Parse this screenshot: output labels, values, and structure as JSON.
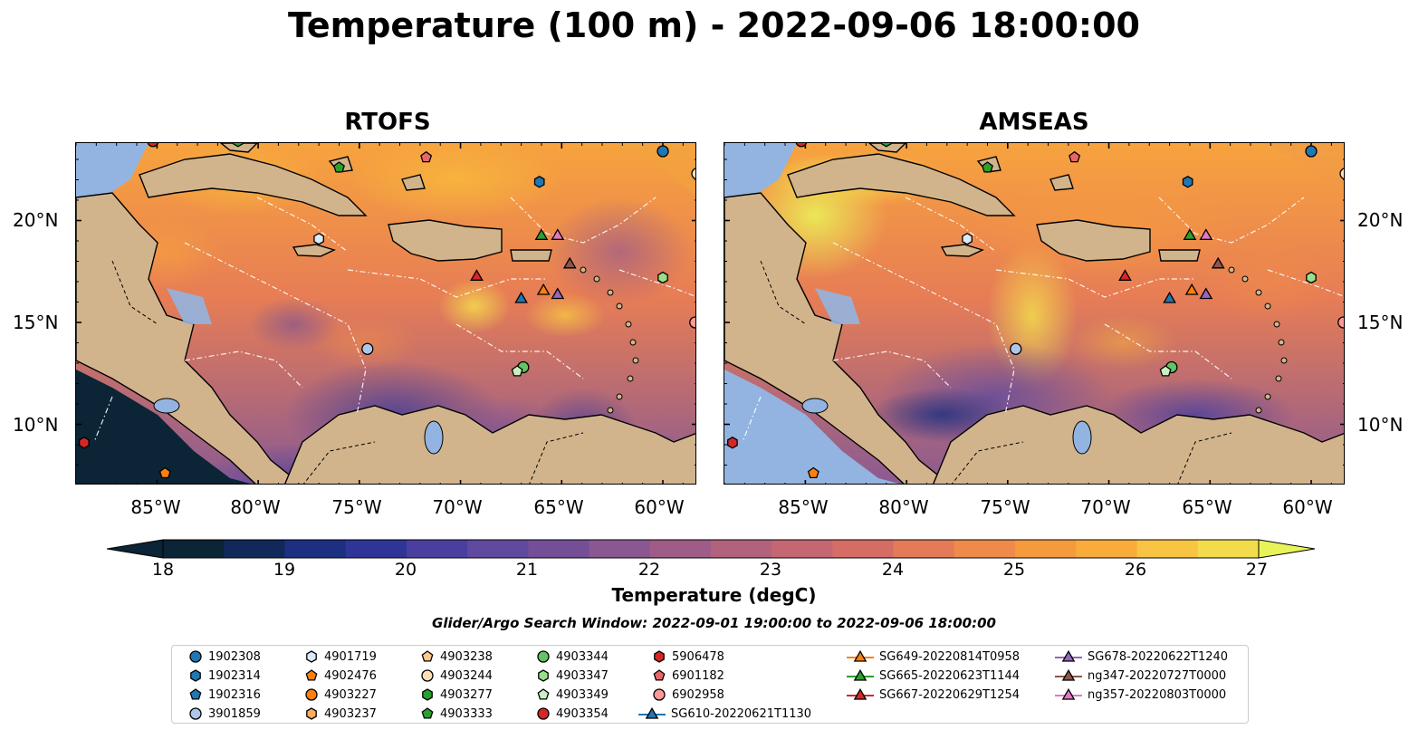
{
  "title": "Temperature (100 m) - 2022-09-06 18:00:00",
  "panels": [
    {
      "title": "RTOFS",
      "lat_labels": [
        "20°N",
        "15°N",
        "10°N"
      ],
      "lat_side": "left"
    },
    {
      "title": "AMSEAS",
      "lat_labels": [
        "20°N",
        "15°N",
        "10°N"
      ],
      "lat_side": "right"
    }
  ],
  "lon_labels": [
    "85°W",
    "80°W",
    "75°W",
    "70°W",
    "65°W",
    "60°W"
  ],
  "colorbar": {
    "label": "Temperature (degC)",
    "ticks": [
      "18",
      "19",
      "20",
      "21",
      "22",
      "23",
      "24",
      "25",
      "26",
      "27"
    ],
    "min": 18,
    "max": 27,
    "extend": "both",
    "colors": [
      "#0b2436",
      "#12285a",
      "#1c2f80",
      "#2f3596",
      "#4a3f9e",
      "#5f4a9f",
      "#744f98",
      "#8a5790",
      "#9e5c86",
      "#b2627c",
      "#c46773",
      "#d66d65",
      "#e47a58",
      "#ef8a4a",
      "#f69a3e",
      "#f9ac3c",
      "#f7c444",
      "#f3dc4c"
    ],
    "under_color": "#0b2436",
    "over_color": "#e8f35a"
  },
  "search_window": "Glider/Argo Search Window: 2022-09-01 19:00:00 to 2022-09-06 18:00:00",
  "legend": {
    "argo": [
      {
        "label": "1902308",
        "marker": "circle",
        "color": "#1f77b4"
      },
      {
        "label": "1902314",
        "marker": "hexagon",
        "color": "#1f77b4"
      },
      {
        "label": "1902316",
        "marker": "pentagon",
        "color": "#1f77b4"
      },
      {
        "label": "3901859",
        "marker": "circle",
        "color": "#aec7e8"
      },
      {
        "label": "4901719",
        "marker": "hexagon",
        "color": "#dbe9fb"
      },
      {
        "label": "4902476",
        "marker": "pentagon",
        "color": "#ff7f0e"
      },
      {
        "label": "4903227",
        "marker": "circle",
        "color": "#ff7f0e"
      },
      {
        "label": "4903237",
        "marker": "hexagon",
        "color": "#ffac5c"
      },
      {
        "label": "4903238",
        "marker": "pentagon",
        "color": "#ffc98a"
      },
      {
        "label": "4903244",
        "marker": "circle",
        "color": "#ffdfb8"
      },
      {
        "label": "4903277",
        "marker": "hexagon",
        "color": "#2ca02c"
      },
      {
        "label": "4903333",
        "marker": "pentagon",
        "color": "#2ca02c"
      },
      {
        "label": "4903344",
        "marker": "circle",
        "color": "#63c463"
      },
      {
        "label": "4903347",
        "marker": "hexagon",
        "color": "#98df8a"
      },
      {
        "label": "4903349",
        "marker": "pentagon",
        "color": "#c9f0c0"
      },
      {
        "label": "4903354",
        "marker": "circle",
        "color": "#d62728"
      },
      {
        "label": "5906478",
        "marker": "hexagon",
        "color": "#d62728"
      },
      {
        "label": "6901182",
        "marker": "pentagon",
        "color": "#e8666a"
      },
      {
        "label": "6902958",
        "marker": "circle",
        "color": "#ff9896"
      }
    ],
    "gliders": [
      {
        "label": "SG610-20220621T1130",
        "color": "#1f77b4"
      },
      {
        "label": "SG649-20220814T0958",
        "color": "#ff7f0e"
      },
      {
        "label": "SG665-20220623T1144",
        "color": "#2ca02c"
      },
      {
        "label": "SG667-20220629T1254",
        "color": "#d62728"
      },
      {
        "label": "SG678-20220622T1240",
        "color": "#9467bd"
      },
      {
        "label": "ng347-20220727T0000",
        "color": "#8c564b"
      },
      {
        "label": "ng357-20220803T0000",
        "color": "#e377c2"
      }
    ]
  },
  "map_extent": {
    "lon_min": -89,
    "lon_max": -58.3,
    "lat_min": 7.0,
    "lat_max": 23.8
  },
  "markers": [
    {
      "id": "1902308",
      "lon": -60.0,
      "lat": 23.4,
      "shape": "circle",
      "color": "#1f77b4"
    },
    {
      "id": "1902314",
      "lon": -66.1,
      "lat": 21.9,
      "shape": "hexagon",
      "color": "#1f77b4"
    },
    {
      "id": "3901859",
      "lon": -74.6,
      "lat": 13.7,
      "shape": "circle",
      "color": "#aec7e8"
    },
    {
      "id": "4901719",
      "lon": -77.0,
      "lat": 19.1,
      "shape": "hexagon",
      "color": "#dbe9fb"
    },
    {
      "id": "4902476",
      "lon": -84.6,
      "lat": 7.6,
      "shape": "pentagon",
      "color": "#ff7f0e"
    },
    {
      "id": "4903244",
      "lon": -58.3,
      "lat": 22.3,
      "shape": "circle",
      "color": "#ffdfb8"
    },
    {
      "id": "4903277",
      "lon": -81.0,
      "lat": 23.9,
      "shape": "hexagon",
      "color": "#2ca02c"
    },
    {
      "id": "4903333",
      "lon": -76.0,
      "lat": 22.6,
      "shape": "pentagon",
      "color": "#2ca02c"
    },
    {
      "id": "4903344",
      "lon": -66.9,
      "lat": 12.8,
      "shape": "circle",
      "color": "#63c463"
    },
    {
      "id": "4903347",
      "lon": -60.0,
      "lat": 17.2,
      "shape": "hexagon",
      "color": "#98df8a"
    },
    {
      "id": "4903349",
      "lon": -67.2,
      "lat": 12.6,
      "shape": "pentagon",
      "color": "#c9f0c0"
    },
    {
      "id": "5906478",
      "lon": -88.6,
      "lat": 9.1,
      "shape": "hexagon",
      "color": "#d62728"
    },
    {
      "id": "6901182",
      "lon": -71.7,
      "lat": 23.1,
      "shape": "pentagon",
      "color": "#e8666a"
    },
    {
      "id": "6902958",
      "lon": -58.4,
      "lat": 15.0,
      "shape": "circle",
      "color": "#ff9896"
    },
    {
      "id": "4903354",
      "lon": -85.2,
      "lat": 23.9,
      "shape": "circle",
      "color": "#d62728"
    },
    {
      "id": "SG610-20220621T1130",
      "lon": -67.0,
      "lat": 16.2,
      "shape": "triangle",
      "color": "#1f77b4"
    },
    {
      "id": "SG649-20220814T0958",
      "lon": -65.9,
      "lat": 16.6,
      "shape": "triangle",
      "color": "#ff7f0e"
    },
    {
      "id": "SG665-20220623T1144",
      "lon": -66.0,
      "lat": 19.3,
      "shape": "triangle",
      "color": "#2ca02c"
    },
    {
      "id": "SG667-20220629T1254",
      "lon": -69.2,
      "lat": 17.3,
      "shape": "triangle",
      "color": "#d62728"
    },
    {
      "id": "SG678-20220622T1240",
      "lon": -65.2,
      "lat": 16.4,
      "shape": "triangle",
      "color": "#9467bd"
    },
    {
      "id": "ng347-20220727T0000",
      "lon": -64.6,
      "lat": 17.9,
      "shape": "triangle",
      "color": "#8c564b"
    },
    {
      "id": "ng357-20220803T0000",
      "lon": -65.2,
      "lat": 19.3,
      "shape": "triangle",
      "color": "#e377c2"
    }
  ]
}
